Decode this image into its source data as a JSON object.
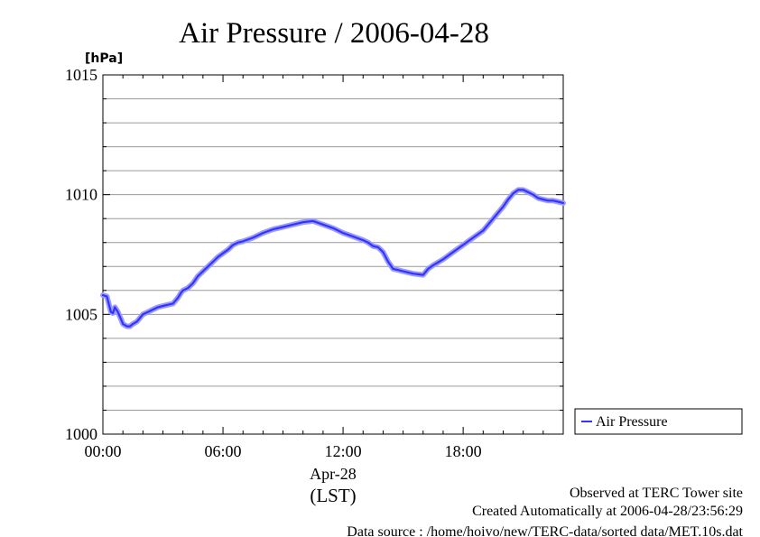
{
  "chart_data": {
    "type": "line",
    "title": "Air Pressure / 2006-04-28",
    "ylabel": "[hPa]",
    "xlabel_lines": [
      "Apr-28",
      "(LST)"
    ],
    "ylim": [
      1000,
      1015
    ],
    "xlim": [
      0,
      23
    ],
    "y_ticks": [
      1000,
      1005,
      1010,
      1015
    ],
    "y_tick_labels": [
      "1000",
      "1005",
      "1010",
      "1015"
    ],
    "y_minor_step": 1,
    "x_ticks": [
      0,
      6,
      12,
      18
    ],
    "x_tick_labels": [
      "00:00",
      "06:00",
      "12:00",
      "18:00"
    ],
    "grid": true,
    "legend_position": "right",
    "series": [
      {
        "name": "Air Pressure",
        "color": "#3333ff",
        "x": [
          0,
          0.2,
          0.4,
          0.5,
          0.6,
          0.75,
          0.9,
          1.0,
          1.2,
          1.35,
          1.5,
          1.7,
          1.9,
          2.0,
          2.25,
          2.5,
          2.75,
          3.0,
          3.25,
          3.5,
          3.75,
          3.9,
          4.0,
          4.25,
          4.5,
          4.75,
          5.0,
          5.25,
          5.5,
          5.75,
          6.0,
          6.25,
          6.5,
          6.75,
          7.0,
          7.5,
          8.0,
          8.5,
          9.0,
          9.5,
          10.0,
          10.5,
          11.0,
          11.5,
          12.0,
          12.5,
          13.0,
          13.25,
          13.5,
          13.75,
          14.0,
          14.25,
          14.5,
          14.75,
          15.0,
          15.5,
          16.0,
          16.25,
          16.5,
          17.0,
          17.5,
          18.0,
          18.5,
          19.0,
          19.5,
          20.0,
          20.25,
          20.5,
          20.75,
          21.0,
          21.25,
          21.5,
          21.75,
          22.0,
          22.25,
          22.5,
          22.75,
          23.0
        ],
        "values": [
          1005.8,
          1005.75,
          1005.1,
          1005.05,
          1005.3,
          1005.1,
          1004.8,
          1004.6,
          1004.5,
          1004.5,
          1004.6,
          1004.7,
          1004.9,
          1005.0,
          1005.1,
          1005.2,
          1005.3,
          1005.35,
          1005.4,
          1005.45,
          1005.7,
          1005.9,
          1006.0,
          1006.1,
          1006.3,
          1006.6,
          1006.8,
          1007.0,
          1007.2,
          1007.4,
          1007.55,
          1007.7,
          1007.9,
          1008.0,
          1008.05,
          1008.2,
          1008.4,
          1008.55,
          1008.65,
          1008.75,
          1008.85,
          1008.9,
          1008.75,
          1008.6,
          1008.4,
          1008.25,
          1008.1,
          1008.0,
          1007.85,
          1007.8,
          1007.6,
          1007.2,
          1006.9,
          1006.85,
          1006.8,
          1006.7,
          1006.65,
          1006.9,
          1007.05,
          1007.3,
          1007.6,
          1007.9,
          1008.2,
          1008.5,
          1009.0,
          1009.5,
          1009.8,
          1010.05,
          1010.2,
          1010.2,
          1010.1,
          1010.0,
          1009.85,
          1009.8,
          1009.75,
          1009.75,
          1009.7,
          1009.65
        ]
      }
    ]
  },
  "footer": {
    "line1": "Observed at TERC Tower site",
    "line2": "Created Automatically at 2006-04-28/23:56:29",
    "line3": "Data source : /home/hoivo/new/TERC-data/sorted  data/MET.10s.dat"
  }
}
